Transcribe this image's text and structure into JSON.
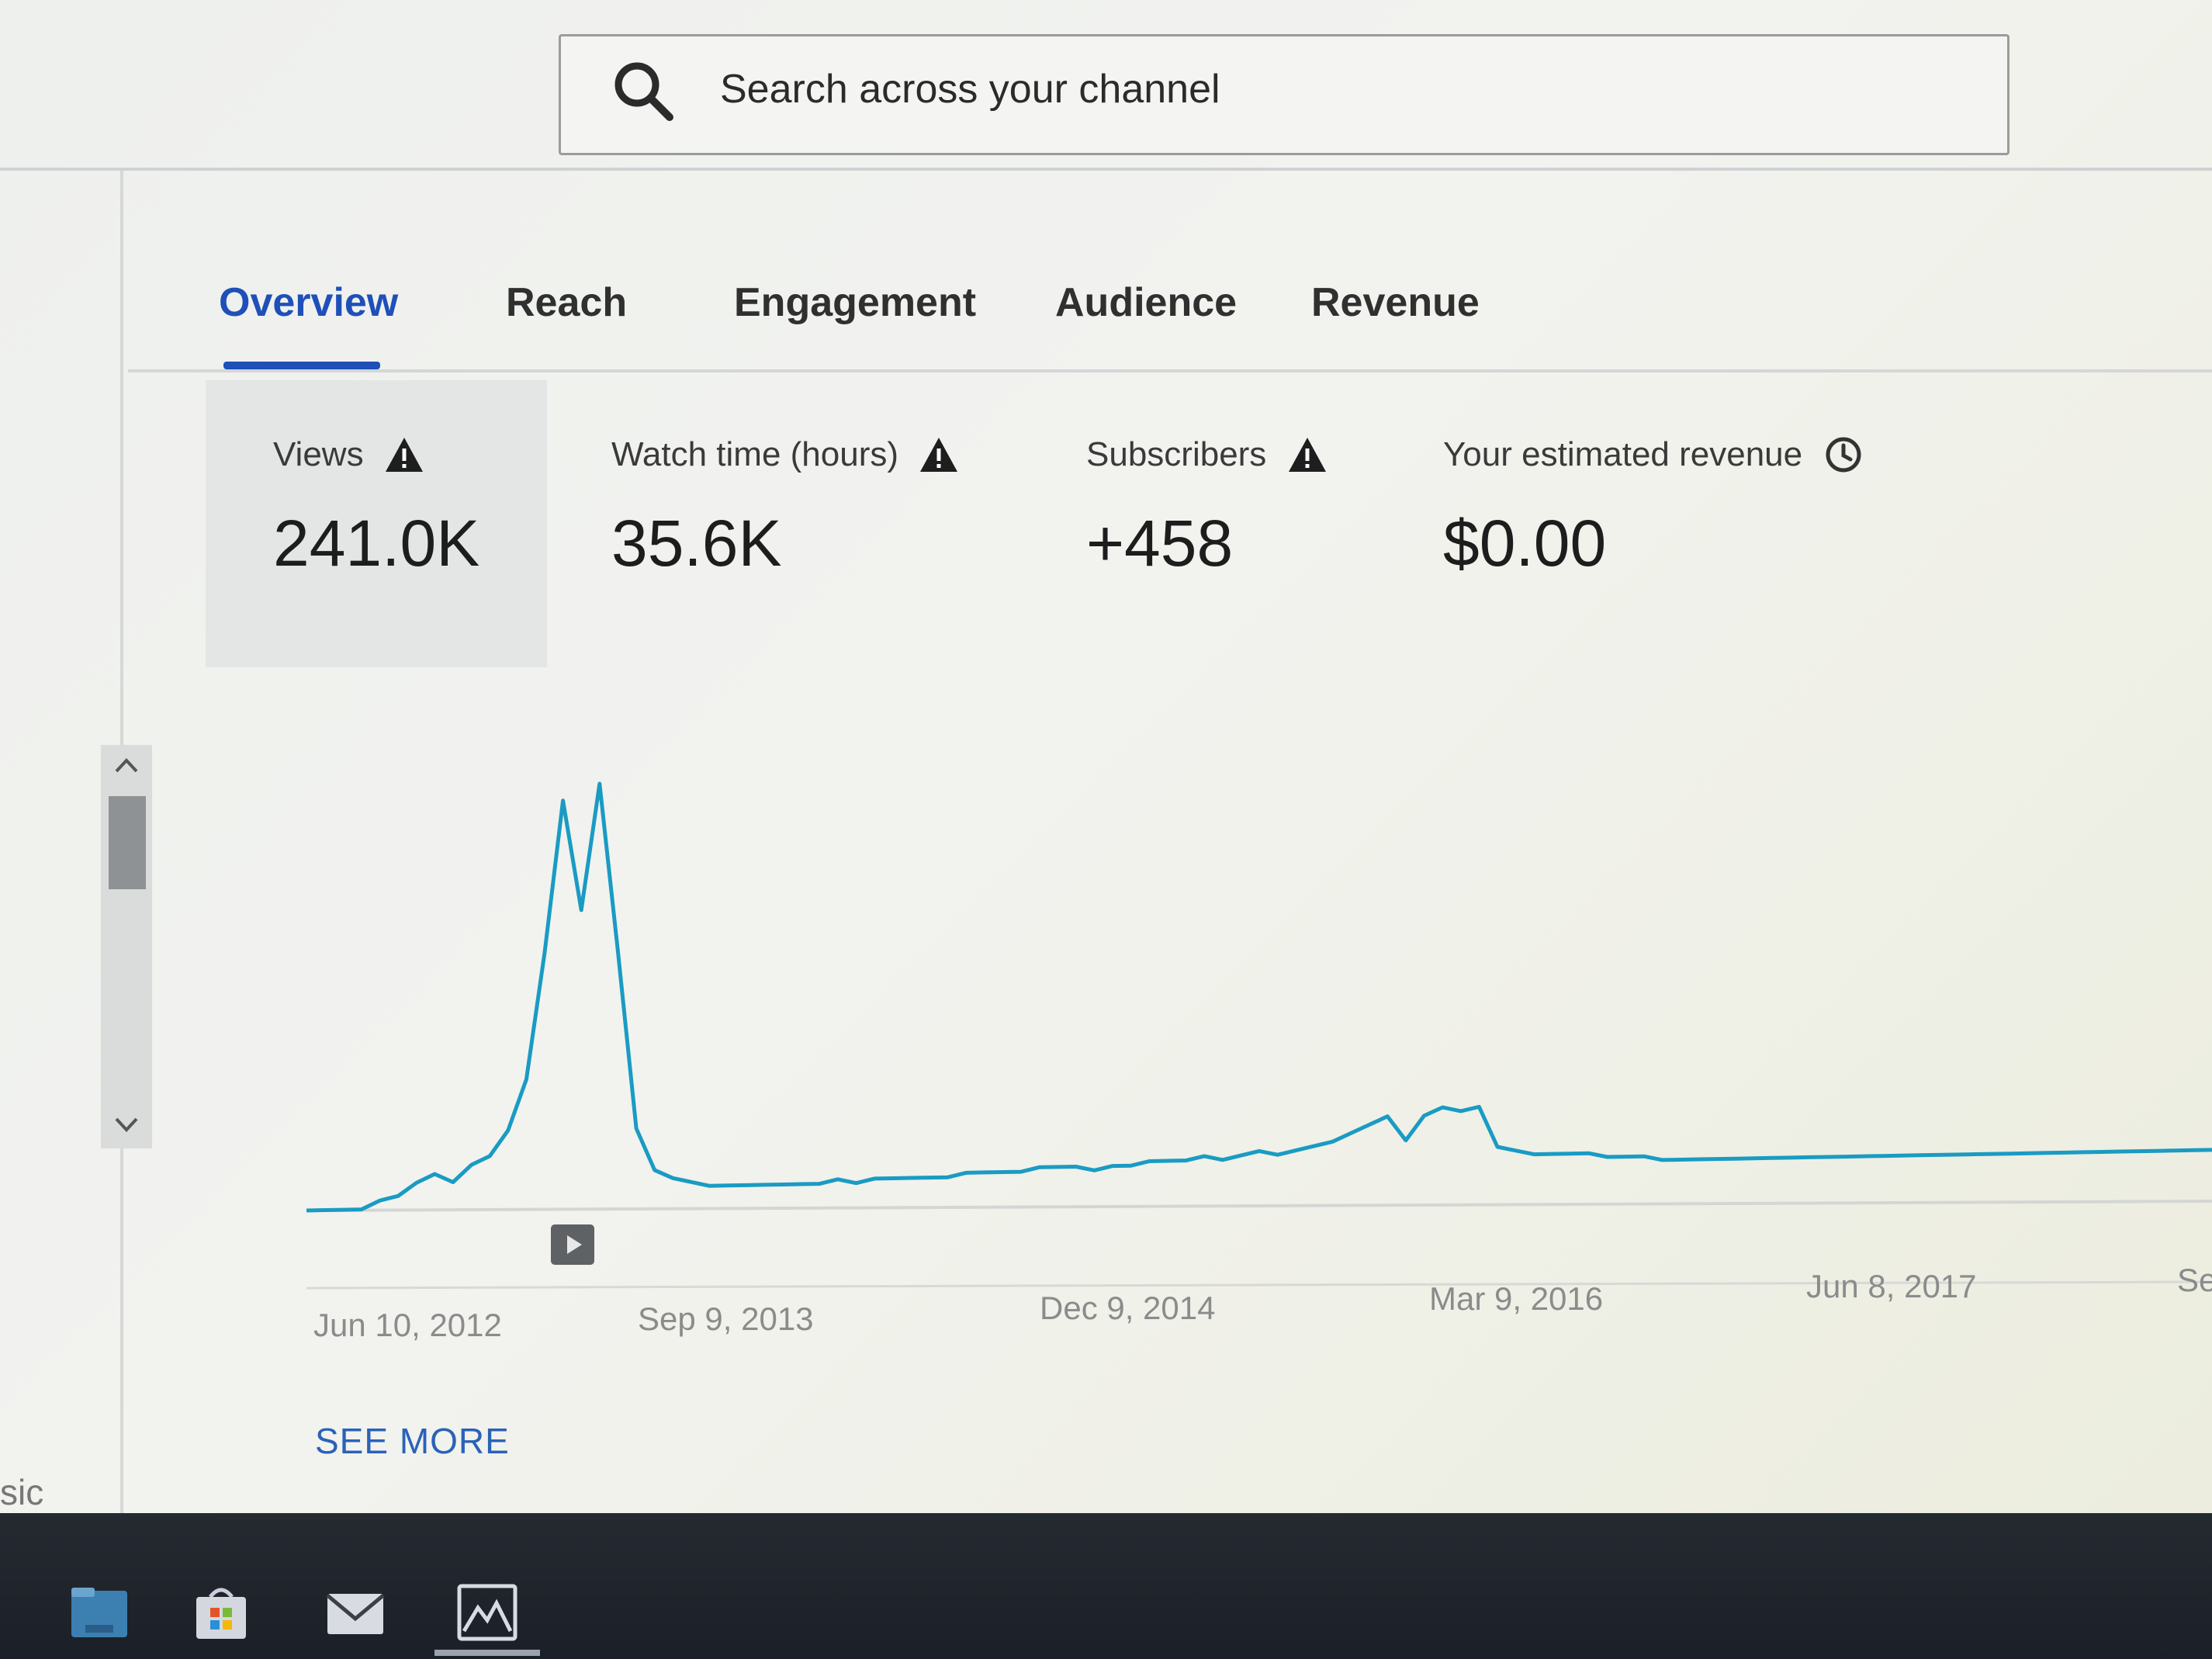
{
  "search": {
    "placeholder": "Search across your channel"
  },
  "tabs": [
    {
      "label": "Overview",
      "active": true
    },
    {
      "label": "Reach"
    },
    {
      "label": "Engagement"
    },
    {
      "label": "Audience"
    },
    {
      "label": "Revenue"
    }
  ],
  "metrics": [
    {
      "label": "Views",
      "value": "241.0K",
      "icon": "warning-icon",
      "selected": true
    },
    {
      "label": "Watch time (hours)",
      "value": "35.6K",
      "icon": "warning-icon"
    },
    {
      "label": "Subscribers",
      "value": "+458",
      "icon": "warning-icon"
    },
    {
      "label": "Your estimated revenue",
      "value": "$0.00",
      "icon": "clock-icon"
    }
  ],
  "chart_data": {
    "type": "line",
    "x_tick_labels": [
      "Jun 10, 2012",
      "Sep 9, 2013",
      "Dec 9, 2014",
      "Mar 9, 2016",
      "Jun 8, 2017",
      "Se"
    ],
    "series": [
      {
        "color": "#1a9bc3",
        "values": [
          0,
          0,
          0,
          0,
          2,
          3,
          6,
          8,
          6,
          10,
          12,
          18,
          30,
          60,
          96,
          70,
          100,
          60,
          18,
          8,
          6,
          5,
          4,
          4,
          4,
          4,
          4,
          4,
          4,
          5,
          4,
          5,
          5,
          5,
          5,
          5,
          6,
          6,
          6,
          6,
          7,
          7,
          7,
          6,
          7,
          7,
          8,
          8,
          8,
          9,
          8,
          9,
          10,
          9,
          10,
          11,
          12,
          14,
          16,
          18,
          12,
          18,
          20,
          19,
          20,
          10,
          9,
          8,
          8,
          8,
          8,
          7,
          7,
          7,
          6,
          6,
          6,
          6,
          6,
          6,
          6,
          6,
          6,
          6,
          6,
          6,
          6,
          6,
          6,
          6,
          6,
          6,
          6,
          6,
          6,
          6,
          6,
          6,
          6,
          6,
          6,
          6,
          6,
          6,
          6
        ]
      }
    ],
    "grid": false,
    "legend": "none"
  },
  "see_more": {
    "label": "SEE MORE"
  },
  "sidebar_fragment": {
    "label": "sic"
  },
  "taskbar": {
    "icons": [
      "file-explorer-icon",
      "store-icon",
      "mail-icon",
      "photos-icon"
    ]
  }
}
